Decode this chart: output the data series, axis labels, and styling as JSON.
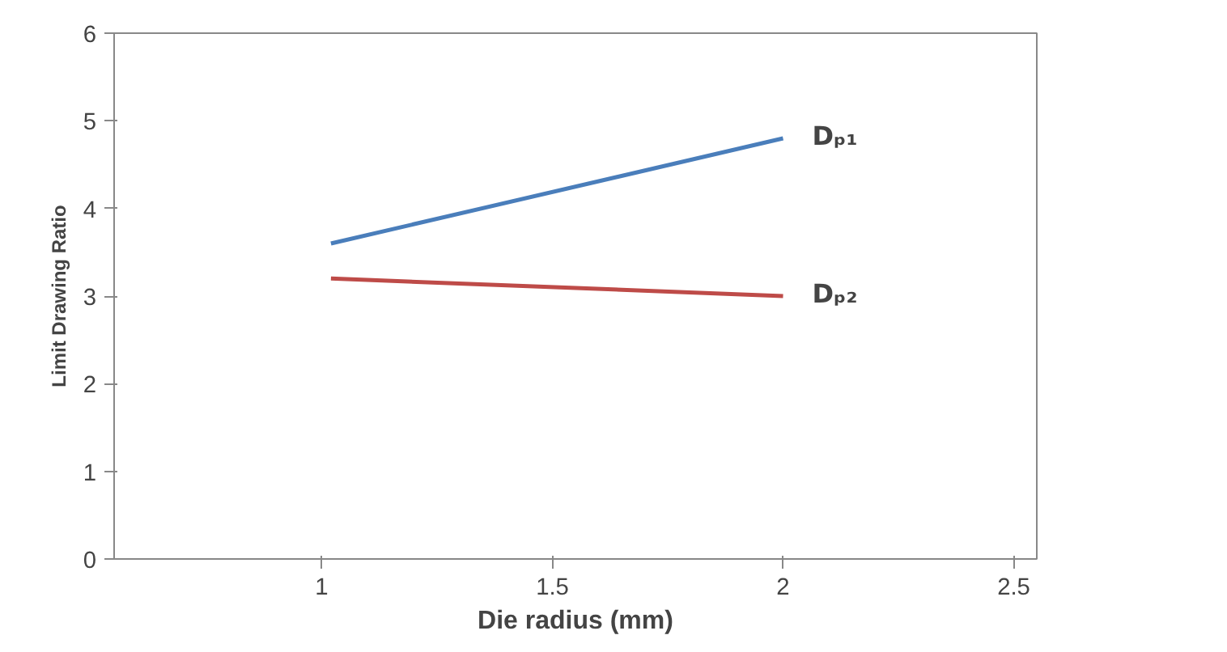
{
  "chart_data": {
    "type": "line",
    "xlabel": "Die radius (mm)",
    "ylabel": "Limit Drawing Ratio",
    "xlim": [
      0.55,
      2.55
    ],
    "xticks": [
      1,
      1.5,
      2,
      2.5
    ],
    "ylim": [
      0,
      6
    ],
    "yticks": [
      0,
      1,
      2,
      3,
      4,
      5,
      6
    ],
    "x": [
      1.02,
      2.0
    ],
    "grid": false,
    "marker": "none",
    "line_style": "solid",
    "series": [
      {
        "name": "Dₚ₁",
        "color": "#4a7ebb",
        "values": [
          3.6,
          4.8
        ]
      },
      {
        "name": "Dₚ₂",
        "color": "#be4b48",
        "values": [
          3.2,
          3.0
        ]
      }
    ]
  }
}
